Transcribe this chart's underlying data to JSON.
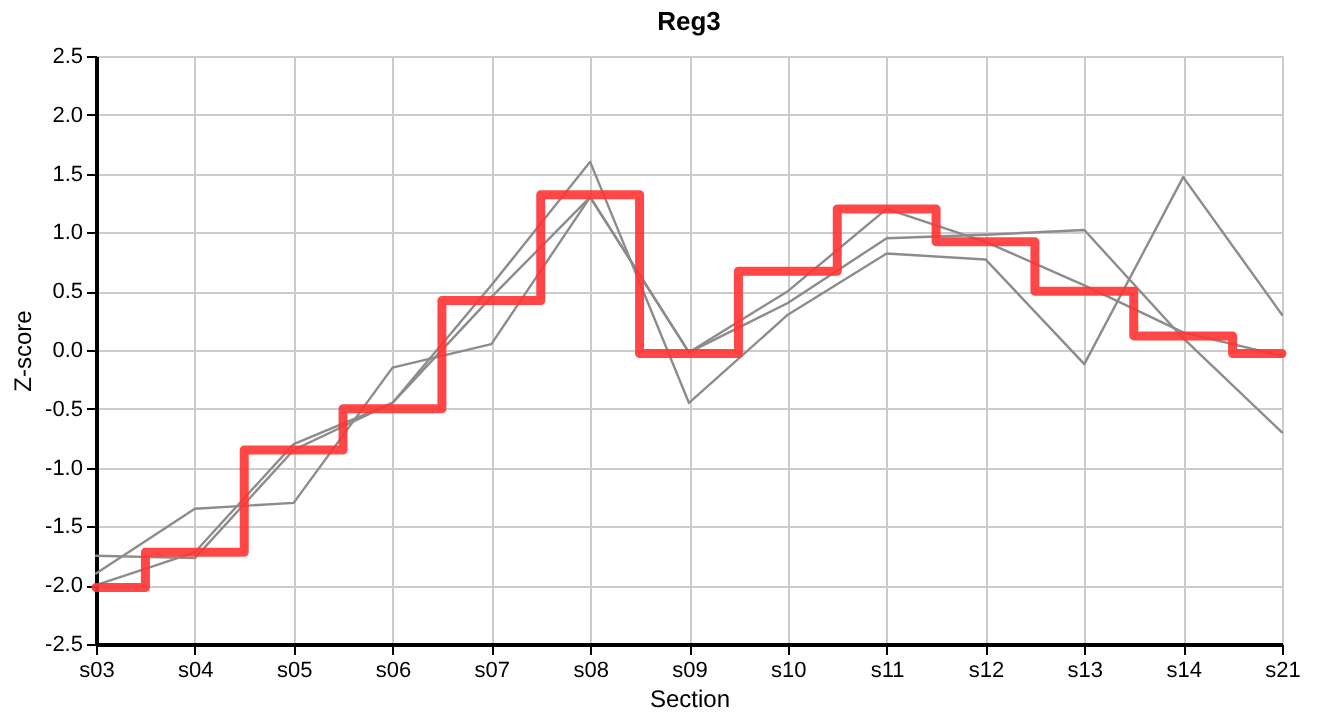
{
  "chart_data": {
    "type": "line",
    "title": "Reg3",
    "xlabel": "Section",
    "ylabel": "Z-score",
    "categories": [
      "s03",
      "s04",
      "s05",
      "s06",
      "s07",
      "s08",
      "s09",
      "s10",
      "s11",
      "s12",
      "s13",
      "s14",
      "s21"
    ],
    "series": [
      {
        "color": "#8c8c8c",
        "values": [
          -1.9,
          -1.35,
          -1.3,
          -0.15,
          0.05,
          1.3,
          -0.02,
          0.5,
          1.2,
          0.92,
          0.55,
          0.15,
          -0.05
        ]
      },
      {
        "color": "#8c8c8c",
        "values": [
          -1.75,
          -1.77,
          -0.85,
          -0.45,
          0.55,
          1.6,
          -0.45,
          0.3,
          0.82,
          0.77,
          -0.12,
          1.47,
          0.3
        ]
      },
      {
        "color": "#8c8c8c",
        "values": [
          -2.0,
          -1.72,
          -0.8,
          -0.45,
          0.45,
          1.3,
          -0.02,
          0.4,
          0.95,
          0.98,
          1.02,
          0.1,
          -0.7
        ]
      },
      {
        "type": "step",
        "color": "#ff3333",
        "values": [
          -2.02,
          -1.72,
          -0.85,
          -0.5,
          0.42,
          1.32,
          -0.03,
          0.67,
          1.2,
          0.92,
          0.5,
          0.12,
          -0.03
        ]
      }
    ],
    "ylim": [
      -2.5,
      2.5
    ],
    "yticks": [
      {
        "value": -2.5,
        "label": "-2.5"
      },
      {
        "value": -2,
        "label": "-2.0"
      },
      {
        "value": -1.5,
        "label": "-1.5"
      },
      {
        "value": -1,
        "label": "-1.0"
      },
      {
        "value": -0.5,
        "label": "-0.5"
      },
      {
        "value": 0,
        "label": "0.0"
      },
      {
        "value": 0.5,
        "label": "0.5"
      },
      {
        "value": 1,
        "label": "1.0"
      },
      {
        "value": 1.5,
        "label": "1.5"
      },
      {
        "value": 2,
        "label": "2.0"
      },
      {
        "value": 2.5,
        "label": "2.5"
      }
    ],
    "grid": true,
    "marker": "none",
    "line_style": "solid"
  }
}
